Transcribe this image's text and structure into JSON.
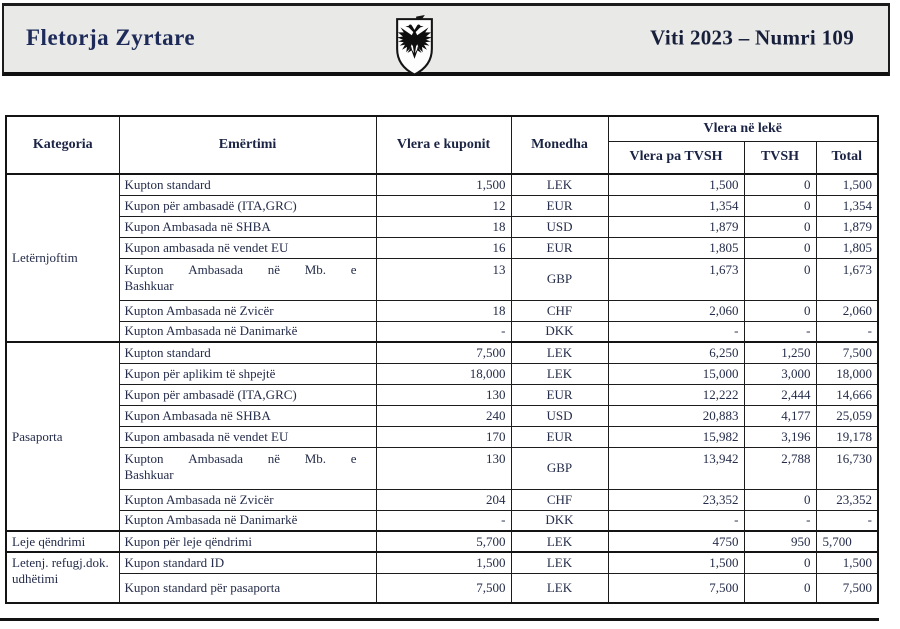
{
  "masthead": {
    "left_title": "Fletorja Zyrtare",
    "right_title": "Viti 2023 – Numri 109",
    "emblem_icon": "albanian-double-headed-eagle-shield",
    "band_bg": "#e9e9e8",
    "title_color": "#1e2b59"
  },
  "table": {
    "headers": {
      "kategoria": "Kategoria",
      "emertimi": "Emërtimi",
      "vlera_kuponit": "Vlera e kuponit",
      "monedha": "Monedha",
      "vlera_ne_leke": "Vlera në lekë",
      "vlera_pa_tvsh": "Vlera pa TVSH",
      "tvsh": "TVSH",
      "total": "Total"
    },
    "sections": [
      {
        "category": "Letërnjoftim",
        "rows": [
          {
            "name": "Kupton standard",
            "coupon": "1,500",
            "currency": "LEK",
            "pa_tvsh": "1,500",
            "tvsh": "0",
            "total": "1,500"
          },
          {
            "name": "Kupon për ambasadë (ITA,GRC)",
            "coupon": "12",
            "currency": "EUR",
            "pa_tvsh": "1,354",
            "tvsh": "0",
            "total": "1,354"
          },
          {
            "name": "Kupon Ambasada në SHBA",
            "coupon": "18",
            "currency": "USD",
            "pa_tvsh": "1,879",
            "tvsh": "0",
            "total": "1,879"
          },
          {
            "name": "Kupon ambasada në vendet EU",
            "coupon": "16",
            "currency": "EUR",
            "pa_tvsh": "1,805",
            "tvsh": "0",
            "total": "1,805"
          },
          {
            "name": "Kupton Ambasada në Mb. e Bashkuar",
            "coupon": "13",
            "currency": "GBP",
            "pa_tvsh": "1,673",
            "tvsh": "0",
            "total": "1,673"
          },
          {
            "name": "Kupton Ambasada në Zvicër",
            "coupon": "18",
            "currency": "CHF",
            "pa_tvsh": "2,060",
            "tvsh": "0",
            "total": "2,060"
          },
          {
            "name": "Kupton Ambasada në Danimarkë",
            "coupon": "-",
            "currency": "DKK",
            "pa_tvsh": "-",
            "tvsh": "-",
            "total": "-"
          }
        ]
      },
      {
        "category": "Pasaporta",
        "rows": [
          {
            "name": "Kupton standard",
            "coupon": "7,500",
            "currency": "LEK",
            "pa_tvsh": "6,250",
            "tvsh": "1,250",
            "total": "7,500"
          },
          {
            "name": "Kupon për aplikim të shpejtë",
            "coupon": "18,000",
            "currency": "LEK",
            "pa_tvsh": "15,000",
            "tvsh": "3,000",
            "total": "18,000"
          },
          {
            "name": "Kupon për ambasadë (ITA,GRC)",
            "coupon": "130",
            "currency": "EUR",
            "pa_tvsh": "12,222",
            "tvsh": "2,444",
            "total": "14,666"
          },
          {
            "name": "Kupon Ambasada në SHBA",
            "coupon": "240",
            "currency": "USD",
            "pa_tvsh": "20,883",
            "tvsh": "4,177",
            "total": "25,059"
          },
          {
            "name": "Kupon ambasada në vendet EU",
            "coupon": "170",
            "currency": "EUR",
            "pa_tvsh": "15,982",
            "tvsh": "3,196",
            "total": "19,178"
          },
          {
            "name": "Kupton Ambasada në Mb. e Bashkuar",
            "coupon": "130",
            "currency": "GBP",
            "pa_tvsh": "13,942",
            "tvsh": "2,788",
            "total": "16,730"
          },
          {
            "name": "Kupton Ambasada në Zvicër",
            "coupon": "204",
            "currency": "CHF",
            "pa_tvsh": "23,352",
            "tvsh": "0",
            "total": "23,352"
          },
          {
            "name": "Kupton Ambasada në Danimarkë",
            "coupon": "-",
            "currency": "DKK",
            "pa_tvsh": "-",
            "tvsh": "-",
            "total": "-"
          }
        ]
      },
      {
        "category": "Leje qëndrimi",
        "rows": [
          {
            "name": "Kupon për leje qëndrimi",
            "coupon": "5,700",
            "currency": "LEK",
            "pa_tvsh": "4750",
            "tvsh": "950",
            "total": "5,700",
            "total_align": "left"
          }
        ]
      },
      {
        "category": "Letenj. refugj.dok. udhëtimi",
        "category_valign": "top",
        "rows": [
          {
            "name": "Kupon standard ID",
            "coupon": "1,500",
            "currency": "LEK",
            "pa_tvsh": "1,500",
            "tvsh": "0",
            "total": "1,500"
          },
          {
            "name": "Kupon standard për pasaporta",
            "coupon": "7,500",
            "currency": "LEK",
            "pa_tvsh": "7,500",
            "tvsh": "0",
            "total": "7,500"
          }
        ]
      }
    ]
  }
}
